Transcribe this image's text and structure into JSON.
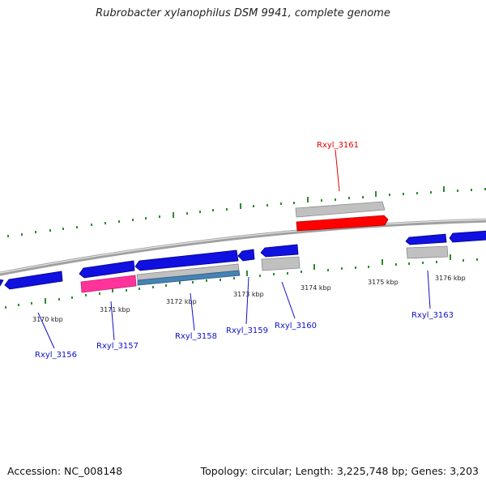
{
  "title": "Rubrobacter xylanophilus DSM 9941, complete genome",
  "footer": {
    "accession": "Accession: NC_008148",
    "topology": "Topology: circular; Length: 3,225,748 bp; Genes: 3,203"
  },
  "kbp_labels": [
    "3170 kbp",
    "3171 kbp",
    "3172 kbp",
    "3173 kbp",
    "3174 kbp",
    "3175 kbp",
    "3176 kbp"
  ],
  "gene_labels": [
    "Rxyl_3156",
    "Rxyl_3157",
    "Rxyl_3158",
    "Rxyl_3159",
    "Rxyl_3160",
    "Rxyl_3161",
    "Rxyl_3163"
  ],
  "colors": {
    "backbone": "#808080",
    "gene_default": "#1010e0",
    "gene_highlight": "#ff0000",
    "gene_pink": "#ff3399",
    "gene_steel": "#4682b4",
    "gene_gray": "#b0b0b0",
    "tick": "#2e8b2e",
    "label_default": "#1010c8",
    "label_highlight": "#e00000"
  }
}
